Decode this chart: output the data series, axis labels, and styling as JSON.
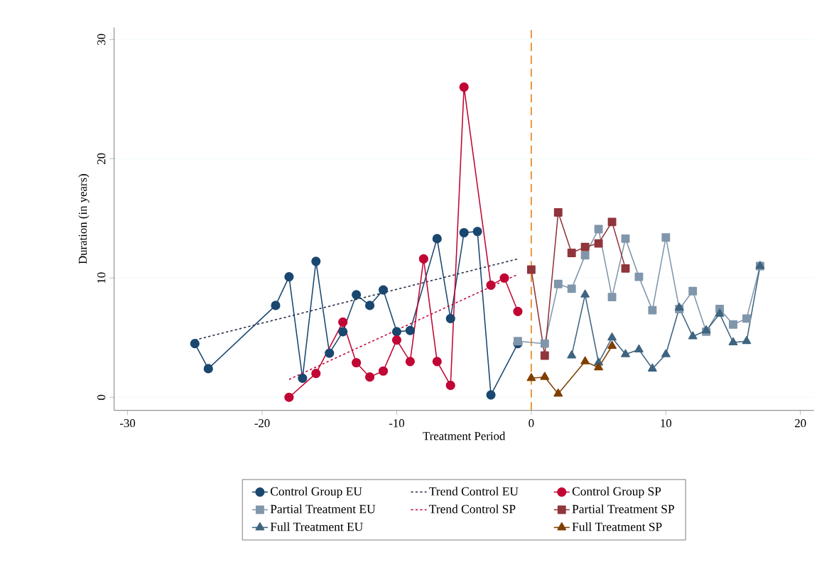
{
  "chart_data": {
    "type": "line",
    "xlabel": "Treatment Period",
    "ylabel": "Duration (in years)",
    "xlim": [
      -31,
      21
    ],
    "ylim": [
      -1.1,
      31
    ],
    "xticks": [
      -30,
      -20,
      -10,
      0,
      10,
      20
    ],
    "yticks": [
      0,
      10,
      20,
      30
    ],
    "grid": "y",
    "legend": "bottom",
    "ref_lines": [
      {
        "axis": "x",
        "value": 0,
        "color": "#e8861a",
        "line_style": "dashed"
      }
    ],
    "series": [
      {
        "name": "Control Group EU",
        "color": "#1a476f",
        "marker": "circle",
        "x": [
          -25,
          -24,
          -19,
          -18,
          -17,
          -16,
          -15,
          -14,
          -13,
          -12,
          -11,
          -10,
          -9,
          -7,
          -6,
          -5,
          -4,
          -3,
          -1
        ],
        "values": [
          4.5,
          2.4,
          7.7,
          10.1,
          1.6,
          11.4,
          3.7,
          5.5,
          8.6,
          7.7,
          9.0,
          5.5,
          5.6,
          13.3,
          6.6,
          13.8,
          13.9,
          0.2,
          4.5
        ]
      },
      {
        "name": "Partial Treatment EU",
        "color": "#8096ab",
        "marker": "square",
        "x": [
          -1,
          1,
          2,
          3,
          4,
          5,
          6,
          7,
          8,
          9,
          10,
          11,
          12,
          13,
          14,
          15,
          16,
          17
        ],
        "values": [
          4.7,
          4.5,
          9.5,
          9.1,
          11.9,
          14.1,
          8.4,
          13.3,
          10.1,
          7.3,
          13.4,
          7.4,
          8.9,
          5.5,
          7.4,
          6.1,
          6.6,
          11.0
        ]
      },
      {
        "name": "Full Treatment EU",
        "color": "#3e6480",
        "marker": "triangle",
        "x": [
          3,
          4,
          5,
          6,
          7,
          8,
          9,
          10,
          11,
          12,
          13,
          14,
          15,
          16,
          17
        ],
        "values": [
          3.5,
          8.6,
          2.9,
          5.0,
          3.6,
          4.0,
          2.4,
          3.6,
          7.5,
          5.1,
          5.6,
          7.0,
          4.6,
          4.7,
          11.0
        ]
      },
      {
        "name": "Trend Control EU",
        "color": "#1f2a44",
        "marker": "none",
        "line_style": "dashed",
        "x": [
          -25,
          -1
        ],
        "values": [
          4.8,
          11.6
        ]
      },
      {
        "name": "Trend Control SP",
        "color": "#c10534",
        "marker": "none",
        "line_style": "dashed",
        "x": [
          -18,
          -1
        ],
        "values": [
          1.5,
          10.3
        ]
      },
      {
        "name": "Control Group SP",
        "color": "#c10534",
        "marker": "circle",
        "x": [
          -18,
          -16,
          -14,
          -13,
          -12,
          -11,
          -10,
          -9,
          -8,
          -7,
          -6,
          -5,
          -3,
          -2,
          -1
        ],
        "values": [
          0,
          2.0,
          6.3,
          2.9,
          1.7,
          2.2,
          4.8,
          3.0,
          11.6,
          3.0,
          1.0,
          26.0,
          9.4,
          10.0,
          7.2
        ]
      },
      {
        "name": "Partial Treatment SP",
        "color": "#90353b",
        "marker": "square",
        "x": [
          0,
          1,
          2,
          3,
          4,
          5,
          6,
          7
        ],
        "values": [
          10.7,
          3.5,
          15.5,
          12.1,
          12.6,
          12.9,
          14.7,
          10.8
        ]
      },
      {
        "name": "Full Treatment SP",
        "color": "#7f3f00",
        "marker": "triangle",
        "x": [
          0,
          1,
          2,
          4,
          5,
          6
        ],
        "values": [
          1.6,
          1.7,
          0.3,
          3.0,
          2.5,
          4.3
        ]
      }
    ]
  }
}
